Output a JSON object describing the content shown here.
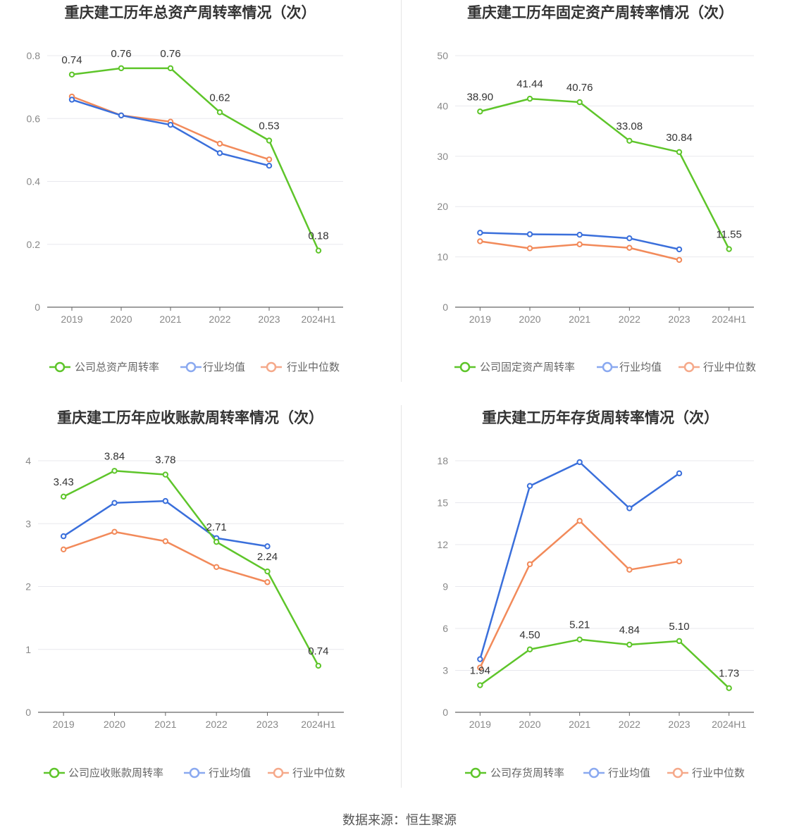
{
  "source": "数据来源：恒生聚源",
  "colors": {
    "company": "#5ec52a",
    "avg": "#3a6fdb",
    "median": "#f28a5a",
    "avg_legend": "#8aa9f0",
    "median_legend": "#f5a98a",
    "grid": "#e8e8ee",
    "axis": "#666666"
  },
  "chart_data": [
    {
      "type": "line",
      "title": "重庆建工历年总资产周转率情况（次）",
      "categories": [
        "2019",
        "2020",
        "2021",
        "2022",
        "2023",
        "2024H1"
      ],
      "ylim": [
        0,
        0.8
      ],
      "yticks": [
        "0",
        "0.2",
        "0.4",
        "0.6",
        "0.8"
      ],
      "series": [
        {
          "name": "公司总资产周转率",
          "role": "company",
          "values": [
            0.74,
            0.76,
            0.76,
            0.62,
            0.53,
            0.18
          ],
          "labels": [
            "0.74",
            "0.76",
            "0.76",
            "0.62",
            "0.53",
            "0.18"
          ]
        },
        {
          "name": "行业均值",
          "role": "avg",
          "values": [
            0.66,
            0.61,
            0.58,
            0.49,
            0.45,
            null
          ]
        },
        {
          "name": "行业中位数",
          "role": "median",
          "values": [
            0.67,
            0.61,
            0.59,
            0.52,
            0.47,
            null
          ]
        }
      ]
    },
    {
      "type": "line",
      "title": "重庆建工历年固定资产周转率情况（次）",
      "categories": [
        "2019",
        "2020",
        "2021",
        "2022",
        "2023",
        "2024H1"
      ],
      "ylim": [
        0,
        50
      ],
      "yticks": [
        "0",
        "10",
        "20",
        "30",
        "40",
        "50"
      ],
      "series": [
        {
          "name": "公司固定资产周转率",
          "role": "company",
          "values": [
            38.9,
            41.44,
            40.76,
            33.08,
            30.84,
            11.55
          ],
          "labels": [
            "38.90",
            "41.44",
            "40.76",
            "33.08",
            "30.84",
            "11.55"
          ]
        },
        {
          "name": "行业均值",
          "role": "avg",
          "values": [
            14.8,
            14.5,
            14.4,
            13.7,
            11.5,
            null
          ]
        },
        {
          "name": "行业中位数",
          "role": "median",
          "values": [
            13.1,
            11.7,
            12.5,
            11.8,
            9.4,
            null
          ]
        }
      ]
    },
    {
      "type": "line",
      "title": "重庆建工历年应收账款周转率情况（次）",
      "categories": [
        "2019",
        "2020",
        "2021",
        "2022",
        "2023",
        "2024H1"
      ],
      "ylim": [
        0,
        4
      ],
      "yticks": [
        "0",
        "1",
        "2",
        "3",
        "4"
      ],
      "series": [
        {
          "name": "公司应收账款周转率",
          "role": "company",
          "values": [
            3.43,
            3.84,
            3.78,
            2.71,
            2.24,
            0.74
          ],
          "labels": [
            "3.43",
            "3.84",
            "3.78",
            "2.71",
            "2.24",
            "0.74"
          ]
        },
        {
          "name": "行业均值",
          "role": "avg",
          "values": [
            2.8,
            3.33,
            3.36,
            2.77,
            2.64,
            null
          ]
        },
        {
          "name": "行业中位数",
          "role": "median",
          "values": [
            2.59,
            2.87,
            2.72,
            2.31,
            2.07,
            null
          ]
        }
      ]
    },
    {
      "type": "line",
      "title": "重庆建工历年存货周转率情况（次）",
      "categories": [
        "2019",
        "2020",
        "2021",
        "2022",
        "2023",
        "2024H1"
      ],
      "ylim": [
        0,
        18
      ],
      "yticks": [
        "0",
        "3",
        "6",
        "9",
        "12",
        "15",
        "18"
      ],
      "series": [
        {
          "name": "公司存货周转率",
          "role": "company",
          "values": [
            1.94,
            4.5,
            5.21,
            4.84,
            5.1,
            1.73
          ],
          "labels": [
            "1.94",
            "4.50",
            "5.21",
            "4.84",
            "5.10",
            "1.73"
          ]
        },
        {
          "name": "行业均值",
          "role": "avg",
          "values": [
            3.8,
            16.2,
            17.9,
            14.6,
            17.1,
            null
          ]
        },
        {
          "name": "行业中位数",
          "role": "median",
          "values": [
            3.2,
            10.6,
            13.7,
            10.2,
            10.8,
            null
          ]
        }
      ]
    }
  ]
}
